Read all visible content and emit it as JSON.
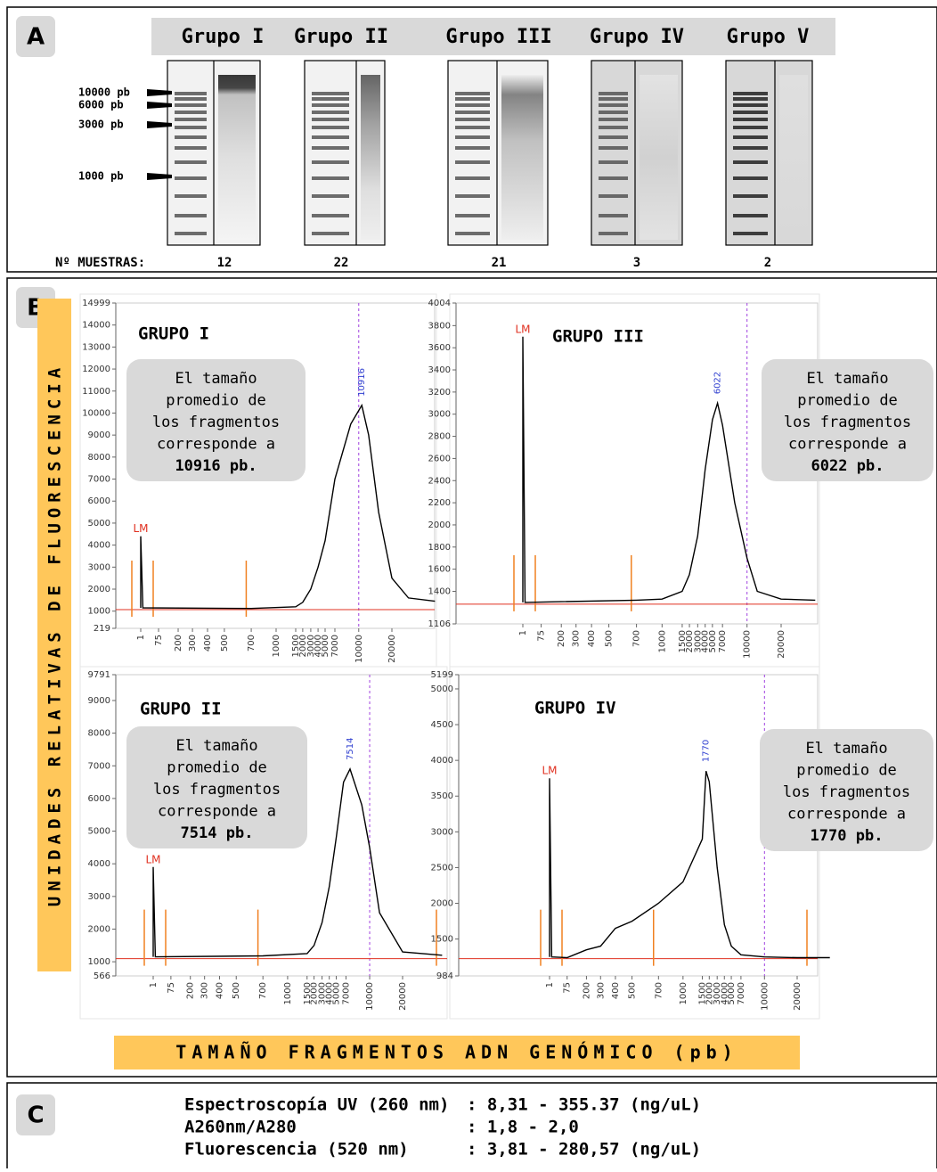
{
  "panel_a": {
    "label": "A",
    "groups": [
      {
        "name": "Grupo I",
        "samples": 12
      },
      {
        "name": "Grupo II",
        "samples": 22
      },
      {
        "name": "Grupo III",
        "samples": 21
      },
      {
        "name": "Grupo IV",
        "samples": 3
      },
      {
        "name": "Grupo V",
        "samples": 2
      }
    ],
    "ladder": [
      "10000 pb",
      "6000 pb",
      "3000 pb",
      "1000 pb"
    ],
    "samples_label": "Nº MUESTRAS:"
  },
  "panel_b": {
    "label": "B",
    "y_axis_label": "UNIDADES RELATIVAS DE FLUORESCENCIA",
    "x_axis_label": "TAMAÑO FRAGMENTOS ADN GENÓMICO (pb)"
  },
  "chart_data": [
    {
      "type": "line",
      "title": "GRUPO I",
      "marker_label": "LM",
      "peak_label": "10916",
      "color": "#000000",
      "callout": [
        "El tamaño",
        "promedio de",
        "los fragmentos",
        "corresponde a",
        "10916 pb."
      ],
      "ylim": [
        219,
        14999
      ],
      "yticks": [
        219,
        1000,
        2000,
        3000,
        4000,
        5000,
        6000,
        7000,
        8000,
        9000,
        10000,
        11000,
        12000,
        13000,
        14000,
        14999
      ],
      "xticks": [
        1,
        75,
        200,
        300,
        400,
        500,
        700,
        1000,
        1500,
        2000,
        3000,
        4000,
        5000,
        7000,
        10000,
        20000
      ],
      "x": [
        1,
        1,
        10,
        700,
        1500,
        2000,
        3000,
        4000,
        5000,
        7000,
        9000,
        10916,
        13000,
        16000,
        20000,
        25000,
        33000
      ],
      "values": [
        1150,
        4400,
        1150,
        1120,
        1200,
        1400,
        2000,
        3000,
        4200,
        7000,
        9500,
        10350,
        9000,
        5500,
        2500,
        1600,
        1450
      ]
    },
    {
      "type": "line",
      "title": "GRUPO III",
      "marker_label": "LM",
      "peak_label": "6022",
      "color": "#000000",
      "callout": [
        "El tamaño",
        "promedio de",
        "los fragmentos",
        "corresponde a",
        "6022 pb."
      ],
      "ylim": [
        1106,
        4004
      ],
      "yticks": [
        1106,
        1400,
        1600,
        1800,
        2000,
        2200,
        2400,
        2600,
        2800,
        3000,
        3200,
        3400,
        3600,
        3800,
        4004
      ],
      "xticks": [
        1,
        75,
        200,
        300,
        400,
        500,
        700,
        1000,
        1500,
        2000,
        3000,
        4000,
        5000,
        7000,
        10000,
        20000
      ],
      "x": [
        1,
        1,
        10,
        700,
        1000,
        1500,
        2000,
        3000,
        4000,
        5000,
        6022,
        7000,
        8500,
        10000,
        13000,
        20000,
        30000
      ],
      "values": [
        1300,
        3700,
        1300,
        1320,
        1330,
        1400,
        1550,
        1900,
        2500,
        2950,
        3100,
        2900,
        2200,
        1700,
        1400,
        1330,
        1320
      ]
    },
    {
      "type": "line",
      "title": "GRUPO II",
      "marker_label": "LM",
      "peak_label": "7514",
      "color": "#000000",
      "callout": [
        "El tamaño",
        "promedio de",
        "los fragmentos",
        "corresponde a",
        "7514 pb."
      ],
      "ylim": [
        566,
        9791
      ],
      "yticks": [
        566,
        1000,
        2000,
        3000,
        4000,
        5000,
        6000,
        7000,
        8000,
        9000,
        9791
      ],
      "xticks": [
        1,
        75,
        200,
        300,
        400,
        500,
        700,
        1000,
        1500,
        2000,
        3000,
        4000,
        5000,
        7000,
        10000,
        20000
      ],
      "x": [
        1,
        1,
        10,
        700,
        1500,
        2000,
        3000,
        4000,
        5000,
        6500,
        7514,
        9000,
        10000,
        13000,
        20000,
        32000
      ],
      "values": [
        1150,
        3900,
        1150,
        1180,
        1250,
        1500,
        2200,
        3300,
        4800,
        6500,
        6900,
        5800,
        4500,
        2500,
        1300,
        1200
      ]
    },
    {
      "type": "line",
      "title": "GRUPO IV",
      "marker_label": "LM",
      "peak_label": "1770",
      "color": "#000000",
      "callout": [
        "El tamaño",
        "promedio de",
        "los fragmentos",
        "corresponde a",
        "1770 pb."
      ],
      "ylim": [
        984,
        5199
      ],
      "yticks": [
        984,
        1500,
        2000,
        2500,
        3000,
        3500,
        4000,
        4500,
        5000,
        5199
      ],
      "xticks": [
        1,
        75,
        200,
        300,
        400,
        500,
        700,
        1000,
        1500,
        2000,
        3000,
        4000,
        5000,
        7000,
        10000,
        20000
      ],
      "x": [
        1,
        1,
        10,
        75,
        200,
        300,
        400,
        500,
        700,
        1000,
        1500,
        1770,
        2000,
        3000,
        4000,
        5000,
        7000,
        10000,
        20000,
        30000
      ],
      "values": [
        1250,
        3750,
        1250,
        1240,
        1350,
        1400,
        1650,
        1750,
        2000,
        2300,
        2900,
        3850,
        3700,
        2500,
        1700,
        1400,
        1280,
        1250,
        1240,
        1240
      ]
    }
  ],
  "panel_c": {
    "label": "C",
    "rows": [
      {
        "label": "Espectroscopía UV (260 nm)",
        "value": ": 8,31 - 355.37 (ng/uL)"
      },
      {
        "label": "A260nm/A280",
        "value": ": 1,8 - 2,0"
      },
      {
        "label": "Fluorescencia (520 nm)",
        "value": ": 3,81 - 280,57 (ng/uL)"
      }
    ]
  }
}
